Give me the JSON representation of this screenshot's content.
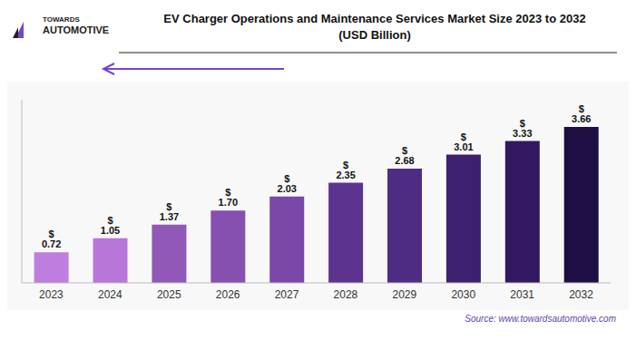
{
  "chart_data": {
    "type": "bar",
    "title": "EV Charger Operations and Maintenance Services Market Size 2023 to 2032",
    "subtitle": "(USD Billion)",
    "categories": [
      "2023",
      "2024",
      "2025",
      "2026",
      "2027",
      "2028",
      "2029",
      "2030",
      "2031",
      "2032"
    ],
    "values": [
      0.72,
      1.05,
      1.37,
      1.7,
      2.03,
      2.35,
      2.68,
      3.01,
      3.33,
      3.66
    ],
    "value_labels": [
      "$ 0.72",
      "$ 1.05",
      "$ 1.37",
      "$ 1.70",
      "$ 2.03",
      "$ 2.35",
      "$ 2.68",
      "$ 3.01",
      "$ 3.33",
      "$ 3.66"
    ],
    "colors": [
      "#c07de0",
      "#b876d8",
      "#9158b8",
      "#8550b0",
      "#7a48a8",
      "#5c3490",
      "#4e2c84",
      "#3e2070",
      "#321860",
      "#1e0e44"
    ],
    "ylim": [
      0,
      4.3
    ],
    "grid": false,
    "data_labels": true,
    "tick_labels": "x",
    "annotations": [
      "TOWARDS",
      "AUTOMOTIVE",
      "Source: www.towardsautomotive.com"
    ]
  }
}
